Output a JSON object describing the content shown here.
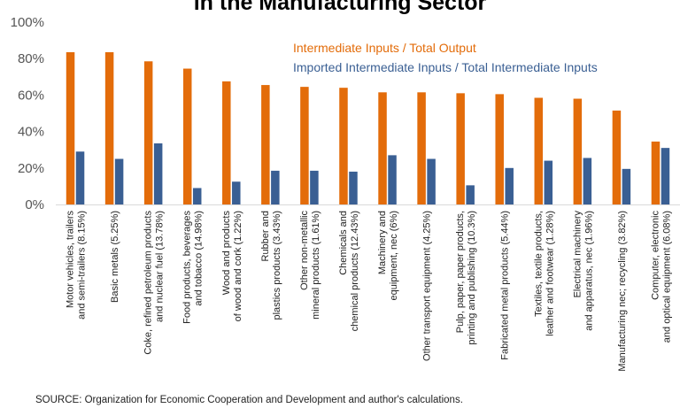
{
  "title": "in the Manufacturing Sector",
  "source": "SOURCE: Organization for Economic Cooperation and Development and author's calculations.",
  "colors": {
    "series1": "#E36C0A",
    "series2": "#3A5F93"
  },
  "chart_data": {
    "type": "bar",
    "title": "in the Manufacturing Sector",
    "ylim": [
      0,
      100
    ],
    "yticks": [
      "0%",
      "20%",
      "40%",
      "60%",
      "80%",
      "100%"
    ],
    "grid": false,
    "legend_position": "top-right",
    "categories": [
      [
        "Motor vehicles, trailers",
        "and semi-trailers (8.15%)"
      ],
      [
        "Basic metals (5.25%)"
      ],
      [
        "Coke, refined petroleum products",
        "and nuclear fuel (13.78%)"
      ],
      [
        "Food products, beverages",
        "and tobacco (14.98%)"
      ],
      [
        "Wood and products",
        "of wood and cork (1.22%)"
      ],
      [
        "Rubber and",
        "plastics products (3.43%)"
      ],
      [
        "Other non-metallic",
        "mineral products (1.61%)"
      ],
      [
        "Chemicals and",
        "chemical products (12.43%)"
      ],
      [
        "Machinery and",
        "equipment, nec (6%)"
      ],
      [
        "Other transport equipment (4.25%)"
      ],
      [
        "Pulp, paper, paper products,",
        "printing and publishing (10.3%)"
      ],
      [
        "Fabricated metal products (5.44%)"
      ],
      [
        "Textiles, textile products,",
        "leather and footwear (1.28%)"
      ],
      [
        "Electrical machinery",
        "and apparatus, nec (1.96%)"
      ],
      [
        "Manufacturing nec; recycling (3.82%)"
      ],
      [
        "Computer, electronic",
        "and optical equipment (6.08%)"
      ]
    ],
    "series": [
      {
        "name": "Intermediate Inputs / Total Output",
        "values": [
          83.5,
          83.5,
          78.5,
          74.5,
          67.5,
          65.5,
          64.5,
          64,
          61.5,
          61.5,
          61,
          60.5,
          58.5,
          58,
          51.5,
          34.5
        ]
      },
      {
        "name": "Imported Intermediate Inputs / Total Intermediate Inputs",
        "values": [
          29,
          25,
          33.5,
          9,
          12.5,
          18.5,
          18.5,
          18,
          27,
          25,
          10.5,
          20,
          24,
          25.5,
          19.5,
          31
        ]
      }
    ]
  }
}
